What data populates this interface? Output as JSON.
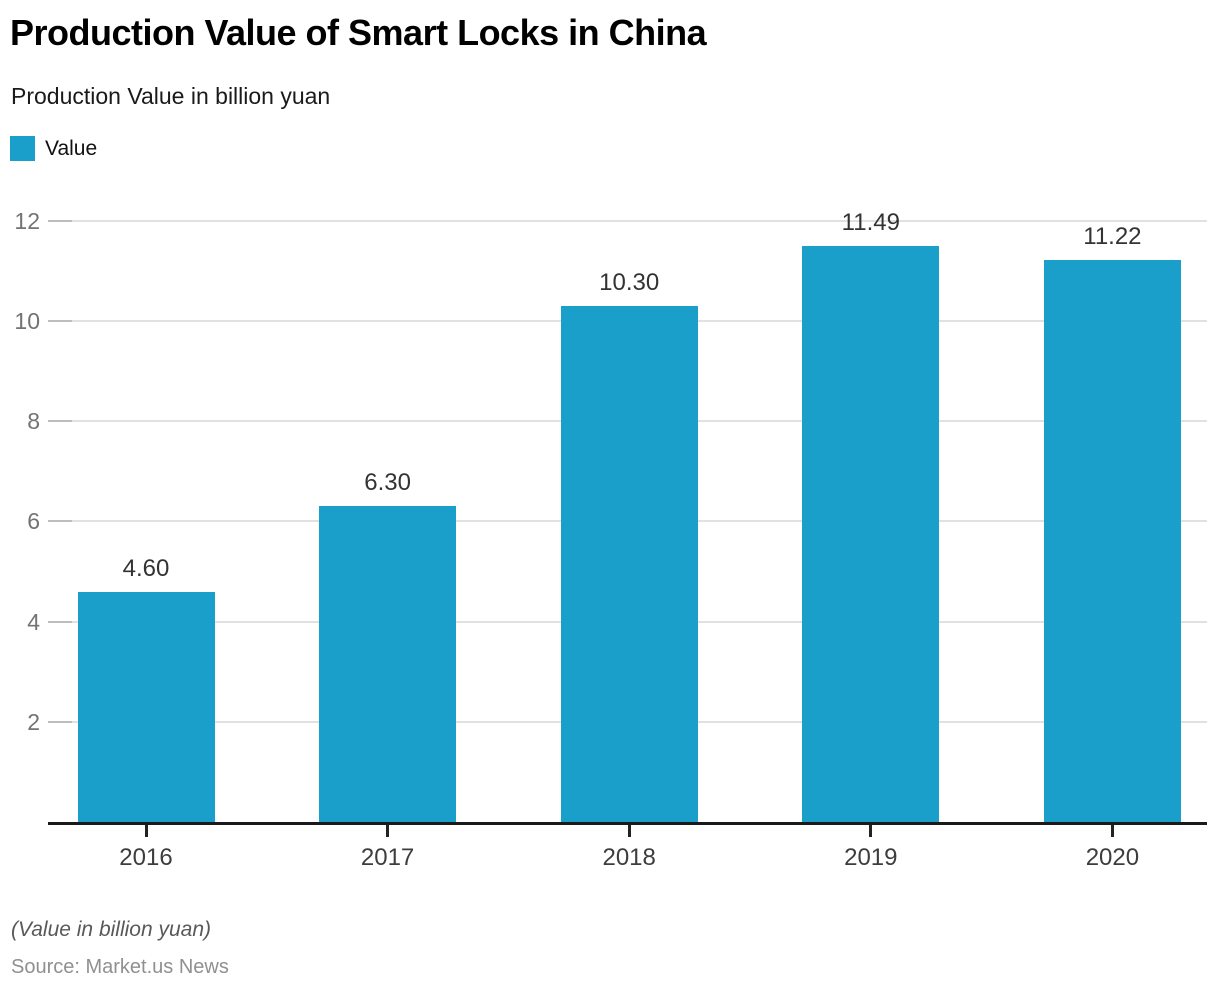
{
  "header": {
    "title": "Production Value of Smart Locks in China",
    "subtitle": "Production Value in billion yuan"
  },
  "legend": {
    "label": "Value",
    "swatch_color": "#1a9fcb"
  },
  "chart_data": {
    "type": "bar",
    "title": "Production Value of Smart Locks in China",
    "subtitle": "Production Value in billion yuan",
    "categories": [
      "2016",
      "2017",
      "2018",
      "2019",
      "2020"
    ],
    "series": [
      {
        "name": "Value",
        "values": [
          4.6,
          6.3,
          10.3,
          11.49,
          11.22
        ]
      }
    ],
    "data_labels": [
      "4.60",
      "6.30",
      "10.30",
      "11.49",
      "11.22"
    ],
    "xlabel": "",
    "ylabel": "",
    "ylim": [
      0,
      12.4
    ],
    "yticks": [
      2,
      4,
      6,
      8,
      10,
      12
    ],
    "grid": true,
    "legend_position": "top-left",
    "bar_color": "#1a9fcb"
  },
  "colors": {
    "bar": "#1a9fcb",
    "gridline": "#e1e1e1",
    "axis_line": "#1a1a1a",
    "y_tick_label": "#737373",
    "x_tick_label": "#3d3d3d",
    "value_label": "#333333",
    "title": "#000000",
    "footnote": "#595959",
    "source": "#909090"
  },
  "footer": {
    "note": "(Value in billion yuan)",
    "source": "Source: Market.us News"
  }
}
